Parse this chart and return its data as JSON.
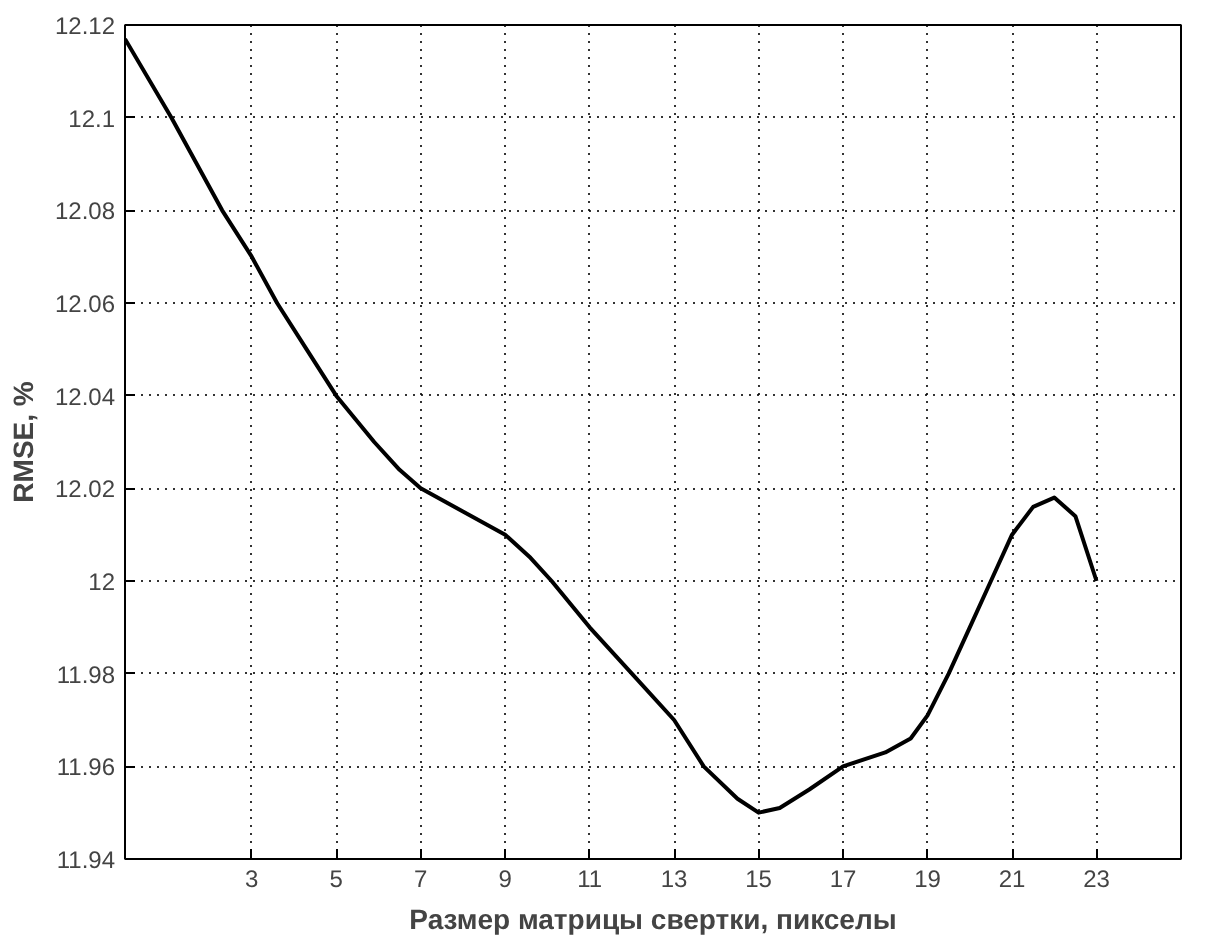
{
  "chart_data": {
    "type": "line",
    "xlabel": "Размер матрицы свертки, пикселы",
    "ylabel": "RMSE, %",
    "x": [
      0,
      1.1,
      2.3,
      3,
      3.6,
      4.3,
      5,
      5.9,
      6.5,
      7,
      8,
      9,
      9.6,
      10.1,
      11,
      12,
      13,
      13.7,
      14.5,
      15,
      15.5,
      16.2,
      17,
      18,
      18.6,
      19,
      19.5,
      20,
      20.5,
      21,
      21.5,
      22,
      22.5,
      23
    ],
    "series": [
      {
        "color": "#000000",
        "values": [
          12.117,
          12.1,
          12.08,
          12.07,
          12.06,
          12.05,
          12.04,
          12.03,
          12.024,
          12.02,
          12.015,
          12.01,
          12.005,
          12.0,
          11.99,
          11.98,
          11.97,
          11.96,
          11.953,
          11.95,
          11.951,
          11.955,
          11.96,
          11.963,
          11.966,
          11.971,
          11.98,
          11.99,
          12.0,
          12.01,
          12.016,
          12.018,
          12.014,
          12.0
        ]
      }
    ],
    "xlim": [
      0,
      25
    ],
    "xticks": [
      3,
      5,
      7,
      9,
      11,
      13,
      15,
      17,
      19,
      21,
      23
    ],
    "ylim": [
      11.94,
      12.12
    ],
    "yticks": [
      11.94,
      11.96,
      11.98,
      12,
      12.02,
      12.04,
      12.06,
      12.08,
      12.1,
      12.12
    ],
    "grid": true,
    "marker": "none",
    "line_style": "solid"
  }
}
